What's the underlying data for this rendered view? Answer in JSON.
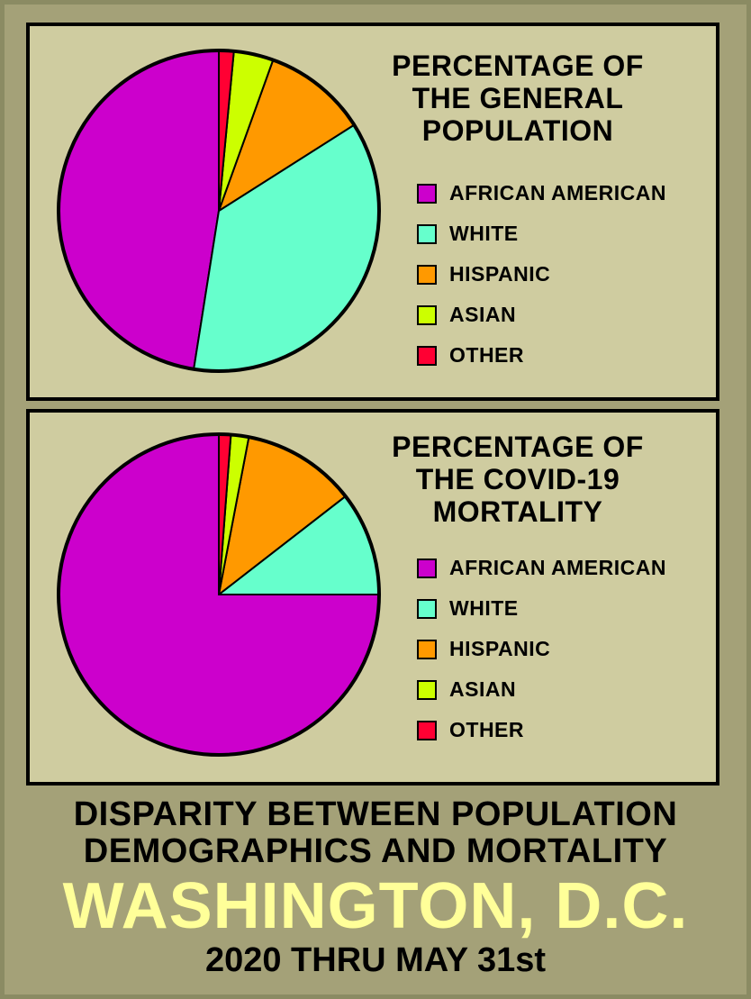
{
  "chart_data": [
    {
      "type": "pie",
      "title": [
        "PERCENTAGE OF",
        "THE GENERAL",
        "POPULATION"
      ],
      "legend": "right",
      "categories": [
        "AFRICAN AMERICAN",
        "WHITE",
        "HISPANIC",
        "ASIAN",
        "OTHER"
      ],
      "values": [
        47.5,
        36.5,
        10.5,
        4.0,
        1.5
      ],
      "colors": [
        "#cc00cc",
        "#66ffcc",
        "#ff9900",
        "#ccff00",
        "#ff0033"
      ]
    },
    {
      "type": "pie",
      "title": [
        "PERCENTAGE OF",
        "THE COVID-19",
        "MORTALITY"
      ],
      "legend": "right",
      "categories": [
        "AFRICAN AMERICAN",
        "WHITE",
        "HISPANIC",
        "ASIAN",
        "OTHER"
      ],
      "values": [
        75.0,
        10.5,
        11.5,
        1.8,
        1.2
      ],
      "colors": [
        "#cc00cc",
        "#66ffcc",
        "#ff9900",
        "#ccff00",
        "#ff0033"
      ]
    }
  ],
  "footer": {
    "line1": "DISPARITY BETWEEN POPULATION",
    "line2": "DEMOGRAPHICS AND MORTALITY",
    "city": "WASHINGTON, D.C.",
    "date_range": "2020 THRU MAY 31st"
  }
}
